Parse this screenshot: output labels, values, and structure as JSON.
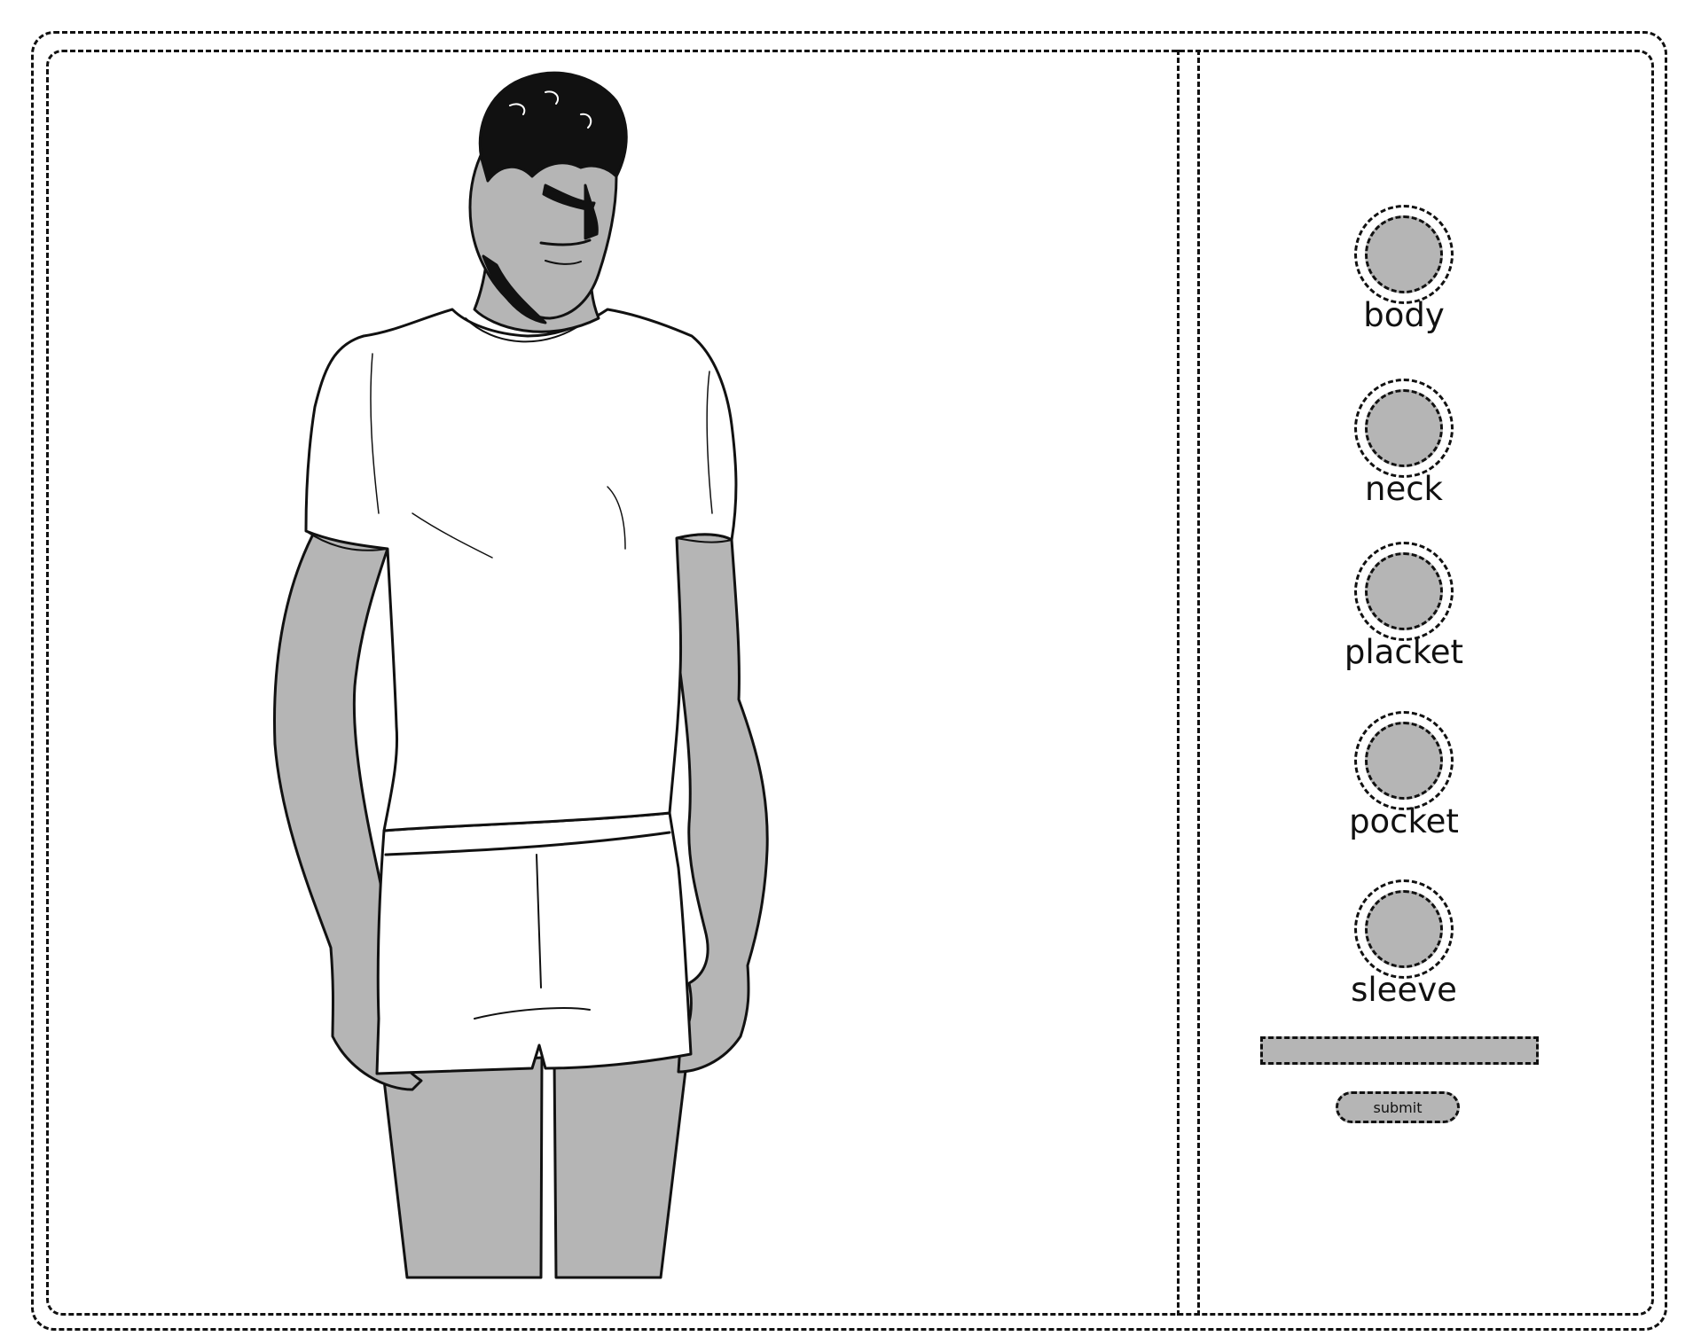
{
  "colors": {
    "fill_gray": "#b5b5b5",
    "ink": "#111111",
    "background": "#ffffff"
  },
  "figure": {
    "subject": "man-in-tshirt-illustration"
  },
  "options": [
    {
      "label": "body"
    },
    {
      "label": "neck"
    },
    {
      "label": "placket"
    },
    {
      "label": "pocket"
    },
    {
      "label": "sleeve"
    }
  ],
  "text_input": {
    "value": "",
    "placeholder": ""
  },
  "submit": {
    "label": "submit"
  }
}
